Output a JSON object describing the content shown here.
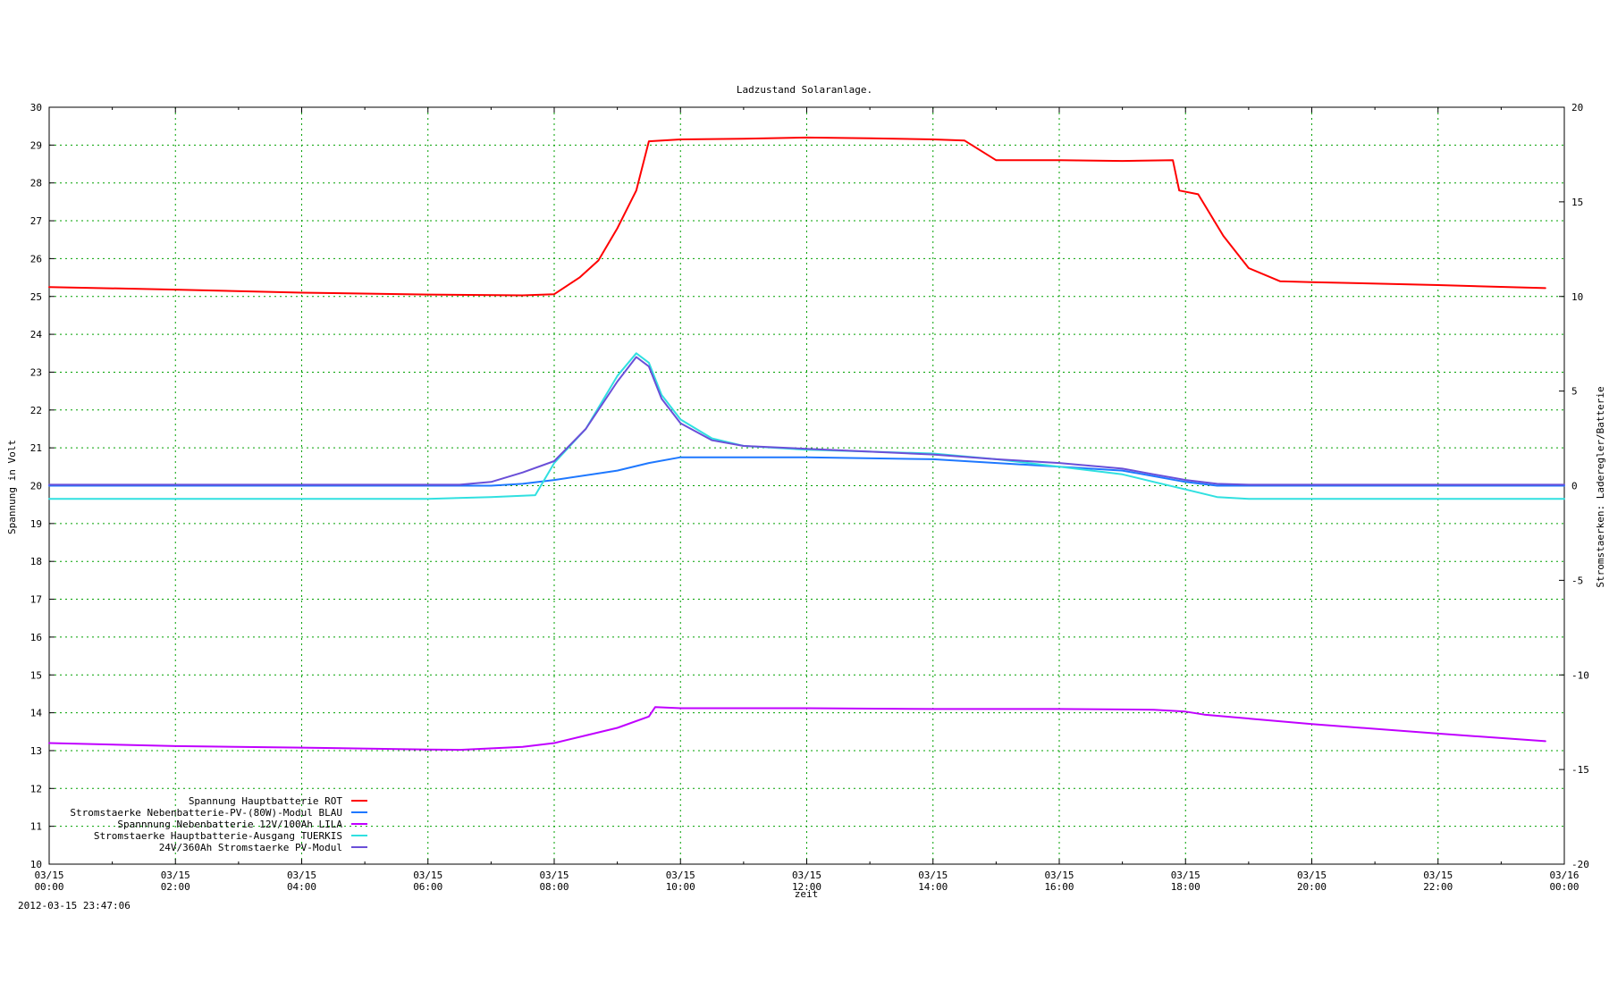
{
  "chart_data": {
    "type": "line",
    "title": "Ladzustand Solaranlage.",
    "xlabel": "zeit",
    "ylabel_left": "Spannung in Volt",
    "ylabel_right": "Stromstaerken: Laderegler/Batterie",
    "timestamp": "2012-03-15 23:47:06",
    "x_domain_hours": [
      0,
      24
    ],
    "y_left_range": [
      10,
      30
    ],
    "y_right_range": [
      -20,
      20
    ],
    "grid": true,
    "legend_position": "bottom-left",
    "x_ticks": [
      {
        "h": 0,
        "date": "03/15",
        "time": "00:00"
      },
      {
        "h": 2,
        "date": "03/15",
        "time": "02:00"
      },
      {
        "h": 4,
        "date": "03/15",
        "time": "04:00"
      },
      {
        "h": 6,
        "date": "03/15",
        "time": "06:00"
      },
      {
        "h": 8,
        "date": "03/15",
        "time": "08:00"
      },
      {
        "h": 10,
        "date": "03/15",
        "time": "10:00"
      },
      {
        "h": 12,
        "date": "03/15",
        "time": "12:00"
      },
      {
        "h": 14,
        "date": "03/15",
        "time": "14:00"
      },
      {
        "h": 16,
        "date": "03/15",
        "time": "16:00"
      },
      {
        "h": 18,
        "date": "03/15",
        "time": "18:00"
      },
      {
        "h": 20,
        "date": "03/15",
        "time": "20:00"
      },
      {
        "h": 22,
        "date": "03/15",
        "time": "22:00"
      },
      {
        "h": 24,
        "date": "03/16",
        "time": "00:00"
      }
    ],
    "y_left_ticks": [
      10,
      11,
      12,
      13,
      14,
      15,
      16,
      17,
      18,
      19,
      20,
      21,
      22,
      23,
      24,
      25,
      26,
      27,
      28,
      29,
      30
    ],
    "y_right_ticks": [
      -20,
      -15,
      -10,
      -5,
      0,
      5,
      10,
      15,
      20
    ],
    "series": [
      {
        "name": "Spannung Hauptbatterie ROT",
        "axis": "left",
        "color": "#ff0000",
        "x": [
          0,
          2,
          4,
          6,
          7.5,
          8.0,
          8.4,
          8.7,
          9.0,
          9.3,
          9.5,
          10,
          11,
          12,
          13,
          14,
          14.5,
          15.0,
          15.5,
          16,
          17,
          17.8,
          17.9,
          18.2,
          18.6,
          19.0,
          19.5,
          20,
          22,
          23.7
        ],
        "y": [
          25.25,
          25.18,
          25.1,
          25.05,
          25.03,
          25.06,
          25.5,
          25.95,
          26.8,
          27.8,
          29.1,
          29.15,
          29.17,
          29.2,
          29.18,
          29.15,
          29.12,
          28.6,
          28.6,
          28.6,
          28.58,
          28.6,
          27.8,
          27.7,
          26.6,
          25.75,
          25.4,
          25.38,
          25.3,
          25.22
        ]
      },
      {
        "name": "Stromstaerke Nebenbatterie-PV-(80W)-Modul BLAU",
        "axis": "right",
        "color": "#1e78ff",
        "x": [
          0,
          7.0,
          7.5,
          8.0,
          9.0,
          9.5,
          10,
          12,
          14,
          16,
          17,
          17.5,
          18.0,
          18.5,
          24
        ],
        "y": [
          0,
          0,
          0.1,
          0.3,
          0.8,
          1.2,
          1.5,
          1.5,
          1.4,
          1.0,
          0.8,
          0.5,
          0.2,
          0,
          0
        ]
      },
      {
        "name": "Spannnung Nebenbatterie 12V/100Ah LILA",
        "axis": "left",
        "color": "#c000ff",
        "x": [
          0,
          2,
          4,
          6,
          6.5,
          7.5,
          8.0,
          8.5,
          9.0,
          9.5,
          9.6,
          10,
          12,
          14,
          16,
          17.5,
          18.0,
          18.3,
          20,
          22,
          23.7
        ],
        "y": [
          13.2,
          13.12,
          13.08,
          13.03,
          13.02,
          13.1,
          13.2,
          13.4,
          13.6,
          13.9,
          14.15,
          14.12,
          14.12,
          14.1,
          14.1,
          14.08,
          14.03,
          13.95,
          13.7,
          13.45,
          13.25
        ]
      },
      {
        "name": "Stromstaerke Hauptbatterie-Ausgang TUERKIS",
        "axis": "right",
        "color": "#30e0e0",
        "x": [
          0,
          6,
          7.0,
          7.7,
          8.0,
          8.5,
          9.0,
          9.3,
          9.5,
          9.7,
          10,
          10.5,
          11,
          12,
          13,
          14,
          15,
          16,
          17,
          17.5,
          18.0,
          18.5,
          19.0,
          24
        ],
        "y": [
          -0.7,
          -0.7,
          -0.6,
          -0.5,
          1.2,
          3.0,
          5.8,
          7.0,
          6.5,
          4.8,
          3.5,
          2.5,
          2.1,
          1.9,
          1.8,
          1.7,
          1.4,
          1.0,
          0.6,
          0.2,
          -0.2,
          -0.6,
          -0.7,
          -0.7
        ]
      },
      {
        "name": "24V/360Ah Stromstaerke PV-Modul",
        "axis": "right",
        "color": "#6a4fd8",
        "x": [
          0,
          6.5,
          7.0,
          7.5,
          8.0,
          8.5,
          9.0,
          9.3,
          9.5,
          9.7,
          10,
          10.5,
          11,
          12,
          13,
          14,
          15,
          16,
          17,
          17.5,
          18.0,
          18.5,
          19.0,
          24
        ],
        "y": [
          0.05,
          0.05,
          0.2,
          0.7,
          1.3,
          3.0,
          5.5,
          6.8,
          6.3,
          4.6,
          3.3,
          2.4,
          2.1,
          1.95,
          1.8,
          1.65,
          1.4,
          1.2,
          0.9,
          0.6,
          0.3,
          0.1,
          0.05,
          0.05
        ]
      }
    ]
  }
}
